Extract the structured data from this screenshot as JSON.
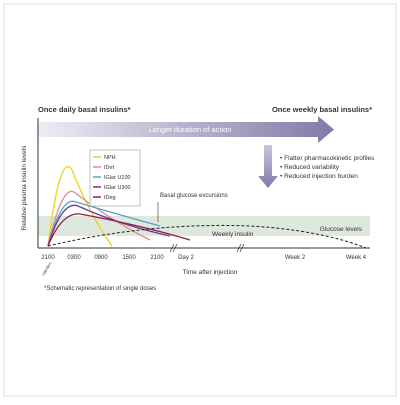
{
  "header": {
    "left": "Once daily basal insulins*",
    "right": "Once weekly basal insulins*"
  },
  "arrow_label": "Longer duration of action",
  "benefits": [
    "Flatter pharmacokinetic profiles",
    "Reduced variability",
    "Reduced injection burden"
  ],
  "y_axis_label": "Relative plasma insulin levels",
  "legend": [
    "NPH",
    "IDet",
    "IGlar U100",
    "IGlar U300",
    "IDeg"
  ],
  "annotations": {
    "basal": "Basal glucose excursions",
    "weekly": "Weekly insulin",
    "glucose": "Glucose levels",
    "injection": "Injection"
  },
  "x_labels": [
    "2100",
    "0300",
    "0900",
    "1500",
    "2100",
    "Day 2",
    "Week 2",
    "Week 4"
  ],
  "x_axis_label": "Time after injection",
  "footnote": "*Schematic representation of single doses"
}
